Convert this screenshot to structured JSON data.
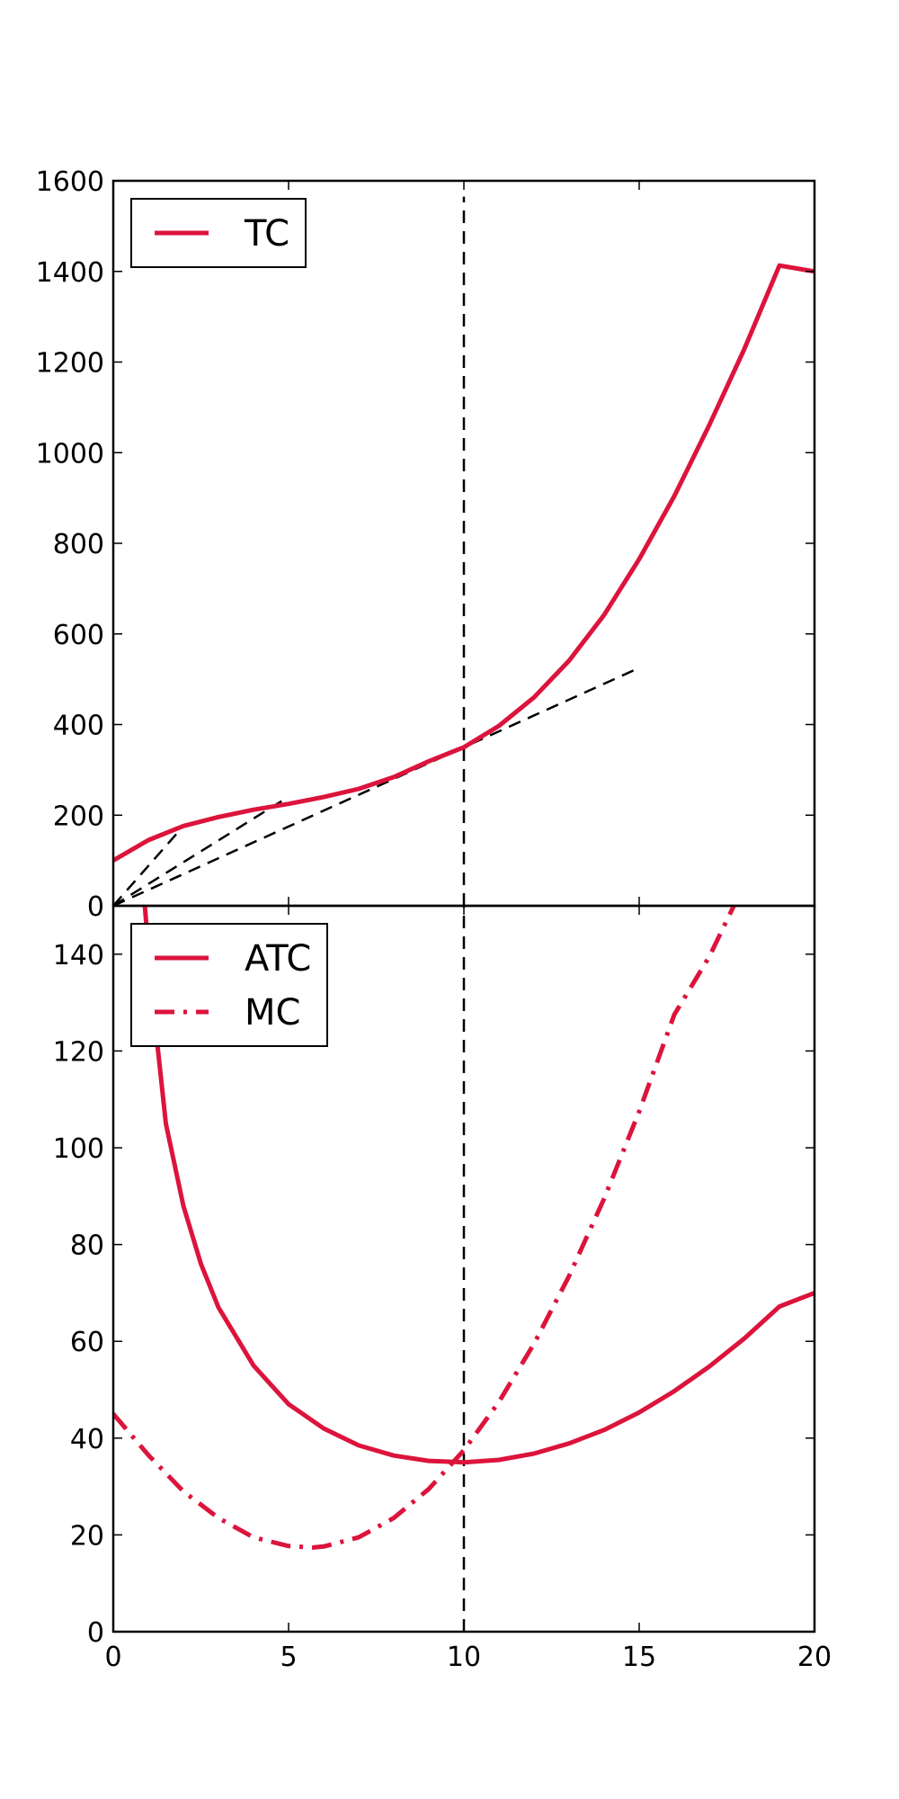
{
  "chart_data": [
    {
      "type": "line",
      "title": "",
      "xlabel": "",
      "ylabel": "",
      "xlim": [
        0,
        20
      ],
      "ylim": [
        0,
        1600
      ],
      "x_ticks": [
        "0",
        "5",
        "10",
        "15",
        "20"
      ],
      "y_ticks": [
        "0",
        "200",
        "400",
        "600",
        "800",
        "1000",
        "1200",
        "1400",
        "1600"
      ],
      "grid": false,
      "legend_position": "top-left",
      "series": [
        {
          "name": "TC",
          "color": "#dc143c",
          "style": "solid",
          "x": [
            0,
            1,
            2,
            3,
            4,
            5,
            6,
            7,
            8,
            9,
            10,
            11,
            12,
            13,
            14,
            15,
            16,
            17,
            18,
            19,
            20
          ],
          "y": [
            100,
            145,
            176,
            196,
            212,
            225,
            240,
            258,
            284,
            319,
            350,
            397,
            460,
            541,
            642,
            765,
            904,
            1061,
            1229,
            1413,
            1400
          ]
        }
      ],
      "reference_lines": [
        {
          "kind": "vertical",
          "x": 10,
          "y_range": [
            0,
            1565
          ],
          "style": "dashed",
          "color": "#000000"
        },
        {
          "kind": "ray",
          "x": [
            0,
            2
          ],
          "y": [
            0,
            176
          ],
          "style": "dashed",
          "color": "#000000"
        },
        {
          "kind": "ray",
          "x": [
            0,
            4.8
          ],
          "y": [
            0,
            231
          ],
          "style": "dashed",
          "color": "#000000"
        },
        {
          "kind": "ray",
          "x": [
            0,
            15
          ],
          "y": [
            0,
            525
          ],
          "style": "dashed",
          "color": "#000000"
        }
      ]
    },
    {
      "type": "line",
      "title": "",
      "xlabel": "",
      "ylabel": "",
      "xlim": [
        0,
        20
      ],
      "ylim": [
        0,
        150
      ],
      "x_ticks": [
        "0",
        "5",
        "10",
        "15",
        "20"
      ],
      "y_ticks": [
        "0",
        "20",
        "40",
        "60",
        "80",
        "100",
        "120",
        "140"
      ],
      "grid": false,
      "legend_position": "top-left",
      "series": [
        {
          "name": "ATC",
          "color": "#dc143c",
          "style": "solid",
          "x": [
            0.9,
            1.1,
            1.5,
            2,
            2.5,
            3,
            4,
            5,
            6,
            7,
            8,
            9,
            10,
            11,
            12,
            13,
            14,
            15,
            16,
            17,
            18,
            19,
            20
          ],
          "y": [
            150,
            132,
            105,
            88,
            76,
            67,
            55,
            47,
            42,
            38.5,
            36.4,
            35.3,
            35,
            35.5,
            36.8,
            38.9,
            41.7,
            45.3,
            49.7,
            54.8,
            60.6,
            67.2,
            70
          ]
        },
        {
          "name": "MC",
          "color": "#dc143c",
          "style": "dashdot",
          "x": [
            0,
            1,
            2,
            3,
            4,
            5,
            5.7,
            6,
            7,
            8,
            9,
            10,
            11,
            12,
            13,
            14,
            15,
            16,
            17,
            17.7
          ],
          "y": [
            45,
            36.5,
            29,
            23.5,
            19.5,
            17.7,
            17.4,
            17.6,
            19.5,
            23.5,
            29.5,
            37.5,
            47.5,
            59.5,
            73.5,
            89.5,
            107.5,
            127.5,
            139.5,
            150
          ]
        }
      ],
      "reference_lines": [
        {
          "kind": "vertical",
          "x": 10,
          "y_range": [
            0,
            150
          ],
          "style": "dashed",
          "color": "#000000"
        }
      ]
    }
  ]
}
